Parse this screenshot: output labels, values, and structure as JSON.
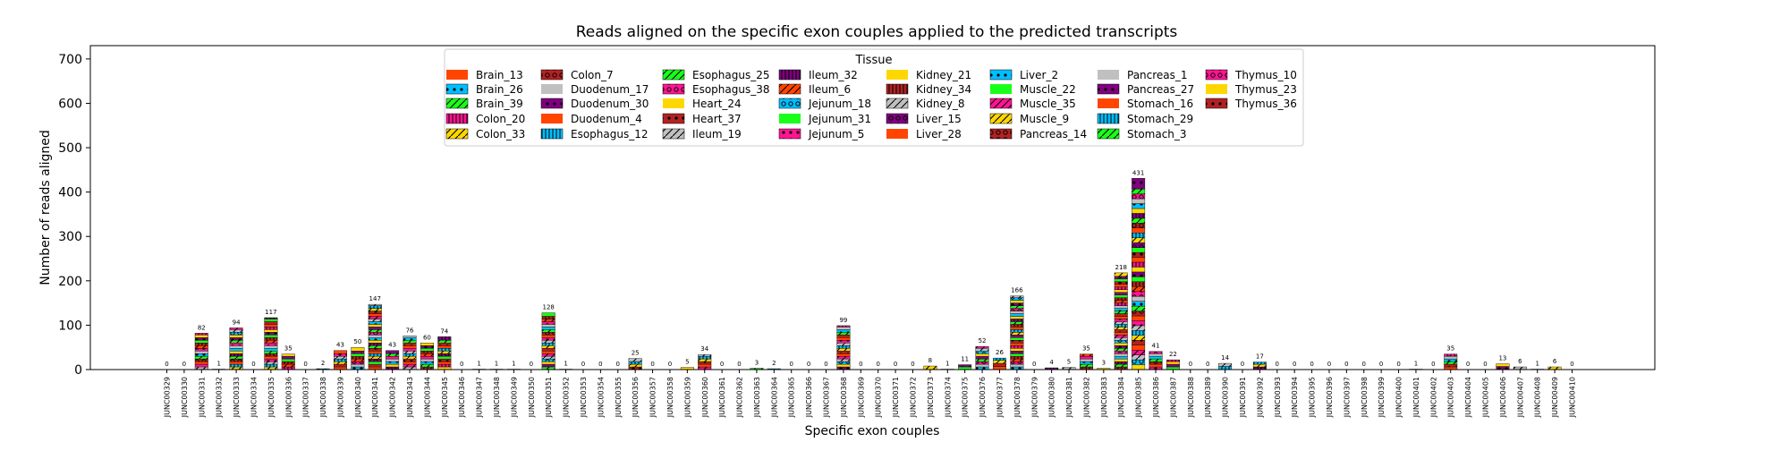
{
  "chart_data": {
    "type": "bar",
    "stacked": true,
    "title": "Reads aligned on the specific exon couples applied to the predicted transcripts",
    "xlabel": "Specific exon couples",
    "ylabel": "Number of reads aligned",
    "ylim": [
      0,
      730
    ],
    "yticks": [
      0,
      100,
      200,
      300,
      400,
      500,
      600,
      700
    ],
    "legend": {
      "title": "Tissue",
      "placement": "top-center",
      "entries": [
        {
          "name": "Brain_13",
          "color": "#ff4500",
          "hatch": ""
        },
        {
          "name": "Brain_26",
          "color": "#00bfff",
          "hatch": "dot"
        },
        {
          "name": "Brain_39",
          "color": "#1aff1a",
          "hatch": "slash"
        },
        {
          "name": "Colon_20",
          "color": "#ff1493",
          "hatch": "bar"
        },
        {
          "name": "Colon_33",
          "color": "#ffd700",
          "hatch": "slash"
        },
        {
          "name": "Colon_7",
          "color": "#b22222",
          "hatch": "ring"
        },
        {
          "name": "Duodenum_17",
          "color": "#c0c0c0",
          "hatch": ""
        },
        {
          "name": "Duodenum_30",
          "color": "#800080",
          "hatch": "dot"
        },
        {
          "name": "Duodenum_4",
          "color": "#ff4500",
          "hatch": ""
        },
        {
          "name": "Esophagus_12",
          "color": "#00bfff",
          "hatch": "bar"
        },
        {
          "name": "Esophagus_25",
          "color": "#1aff1a",
          "hatch": "slash"
        },
        {
          "name": "Esophagus_38",
          "color": "#ff1493",
          "hatch": "ring"
        },
        {
          "name": "Heart_24",
          "color": "#ffd700",
          "hatch": ""
        },
        {
          "name": "Heart_37",
          "color": "#b22222",
          "hatch": "dot"
        },
        {
          "name": "Ileum_19",
          "color": "#c0c0c0",
          "hatch": "slash"
        },
        {
          "name": "Ileum_32",
          "color": "#800080",
          "hatch": "bar"
        },
        {
          "name": "Ileum_6",
          "color": "#ff4500",
          "hatch": "slash"
        },
        {
          "name": "Jejunum_18",
          "color": "#00bfff",
          "hatch": "ring"
        },
        {
          "name": "Jejunum_31",
          "color": "#1aff1a",
          "hatch": ""
        },
        {
          "name": "Jejunum_5",
          "color": "#ff1493",
          "hatch": "dot"
        },
        {
          "name": "Kidney_21",
          "color": "#ffd700",
          "hatch": ""
        },
        {
          "name": "Kidney_34",
          "color": "#b22222",
          "hatch": "bar"
        },
        {
          "name": "Kidney_8",
          "color": "#c0c0c0",
          "hatch": "slash"
        },
        {
          "name": "Liver_15",
          "color": "#800080",
          "hatch": "ring"
        },
        {
          "name": "Liver_28",
          "color": "#ff4500",
          "hatch": ""
        },
        {
          "name": "Liver_2",
          "color": "#00bfff",
          "hatch": "dot"
        },
        {
          "name": "Muscle_22",
          "color": "#1aff1a",
          "hatch": ""
        },
        {
          "name": "Muscle_35",
          "color": "#ff1493",
          "hatch": "slash"
        },
        {
          "name": "Muscle_9",
          "color": "#ffd700",
          "hatch": "slash"
        },
        {
          "name": "Pancreas_14",
          "color": "#b22222",
          "hatch": "ring"
        },
        {
          "name": "Pancreas_1",
          "color": "#c0c0c0",
          "hatch": ""
        },
        {
          "name": "Pancreas_27",
          "color": "#800080",
          "hatch": "dot"
        },
        {
          "name": "Stomach_16",
          "color": "#ff4500",
          "hatch": ""
        },
        {
          "name": "Stomach_29",
          "color": "#00bfff",
          "hatch": "bar"
        },
        {
          "name": "Stomach_3",
          "color": "#1aff1a",
          "hatch": "slash"
        },
        {
          "name": "Thymus_10",
          "color": "#ff1493",
          "hatch": "ring"
        },
        {
          "name": "Thymus_23",
          "color": "#ffd700",
          "hatch": ""
        },
        {
          "name": "Thymus_36",
          "color": "#b22222",
          "hatch": "dot"
        }
      ]
    },
    "categories": [
      "JUNC00329",
      "JUNC00330",
      "JUNC00331",
      "JUNC00332",
      "JUNC00333",
      "JUNC00334",
      "JUNC00335",
      "JUNC00336",
      "JUNC00337",
      "JUNC00338",
      "JUNC00339",
      "JUNC00340",
      "JUNC00341",
      "JUNC00342",
      "JUNC00343",
      "JUNC00344",
      "JUNC00345",
      "JUNC00346",
      "JUNC00347",
      "JUNC00348",
      "JUNC00349",
      "JUNC00350",
      "JUNC00351",
      "JUNC00352",
      "JUNC00353",
      "JUNC00354",
      "JUNC00355",
      "JUNC00356",
      "JUNC00357",
      "JUNC00358",
      "JUNC00359",
      "JUNC00360",
      "JUNC00361",
      "JUNC00362",
      "JUNC00363",
      "JUNC00364",
      "JUNC00365",
      "JUNC00366",
      "JUNC00367",
      "JUNC00368",
      "JUNC00369",
      "JUNC00370",
      "JUNC00371",
      "JUNC00372",
      "JUNC00373",
      "JUNC00374",
      "JUNC00375",
      "JUNC00376",
      "JUNC00377",
      "JUNC00378",
      "JUNC00379",
      "JUNC00380",
      "JUNC00381",
      "JUNC00382",
      "JUNC00383",
      "JUNC00384",
      "JUNC00385",
      "JUNC00386",
      "JUNC00387",
      "JUNC00388",
      "JUNC00389",
      "JUNC00390",
      "JUNC00391",
      "JUNC00392",
      "JUNC00393",
      "JUNC00394",
      "JUNC00395",
      "JUNC00396",
      "JUNC00397",
      "JUNC00398",
      "JUNC00399",
      "JUNC00400",
      "JUNC00401",
      "JUNC00402",
      "JUNC00403",
      "JUNC00404",
      "JUNC00405",
      "JUNC00406",
      "JUNC00407",
      "JUNC00408",
      "JUNC00409",
      "JUNC00410"
    ],
    "totals": [
      0,
      0,
      82,
      1,
      94,
      0,
      117,
      35,
      0,
      2,
      43,
      50,
      147,
      43,
      76,
      60,
      74,
      0,
      1,
      1,
      1,
      0,
      128,
      1,
      0,
      0,
      0,
      25,
      0,
      0,
      5,
      34,
      0,
      0,
      3,
      2,
      0,
      0,
      0,
      99,
      0,
      0,
      0,
      0,
      8,
      1,
      11,
      52,
      26,
      166,
      0,
      4,
      5,
      35,
      3,
      218,
      431,
      41,
      22,
      0,
      0,
      14,
      0,
      17,
      0,
      0,
      0,
      0,
      0,
      0,
      0,
      0,
      1,
      0,
      35,
      0,
      0,
      13,
      6,
      1,
      6,
      0
    ]
  }
}
